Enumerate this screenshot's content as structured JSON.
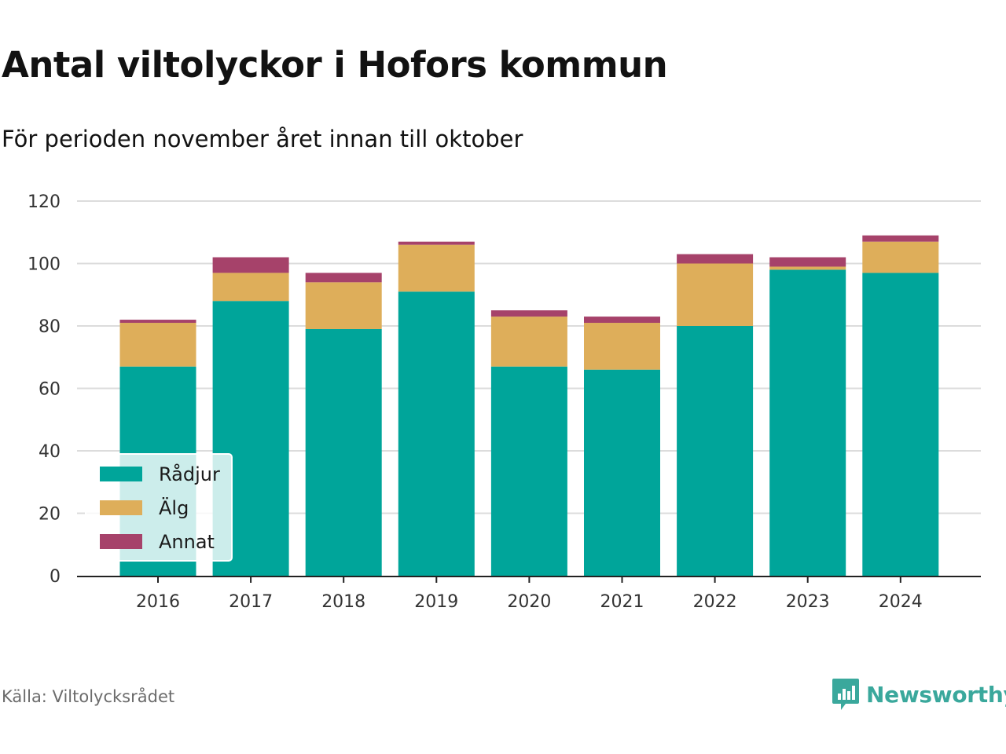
{
  "title": "Antal viltolyckor i Hofors kommun",
  "subtitle": "För perioden november året innan till oktober",
  "source": "Källa: Viltolycksrådet",
  "brand": {
    "name": "Newsworthy",
    "icon": "newsworthy-logo-icon",
    "color": "#3aa89c"
  },
  "chart_data": {
    "type": "bar",
    "stacked": true,
    "categories": [
      "2016",
      "2017",
      "2018",
      "2019",
      "2020",
      "2021",
      "2022",
      "2023",
      "2024"
    ],
    "series": [
      {
        "name": "Rådjur",
        "color": "#00a59a",
        "values": [
          67,
          88,
          79,
          91,
          67,
          66,
          80,
          98,
          97
        ]
      },
      {
        "name": "Älg",
        "color": "#deae5a",
        "values": [
          14,
          9,
          15,
          15,
          16,
          15,
          20,
          1,
          10
        ]
      },
      {
        "name": "Annat",
        "color": "#a6426a",
        "values": [
          1,
          5,
          3,
          1,
          2,
          2,
          3,
          3,
          2
        ]
      }
    ],
    "ylim": [
      0,
      120
    ],
    "yticks": [
      0,
      20,
      40,
      60,
      80,
      100,
      120
    ],
    "grid": true,
    "legend_position": "bottom-left"
  }
}
